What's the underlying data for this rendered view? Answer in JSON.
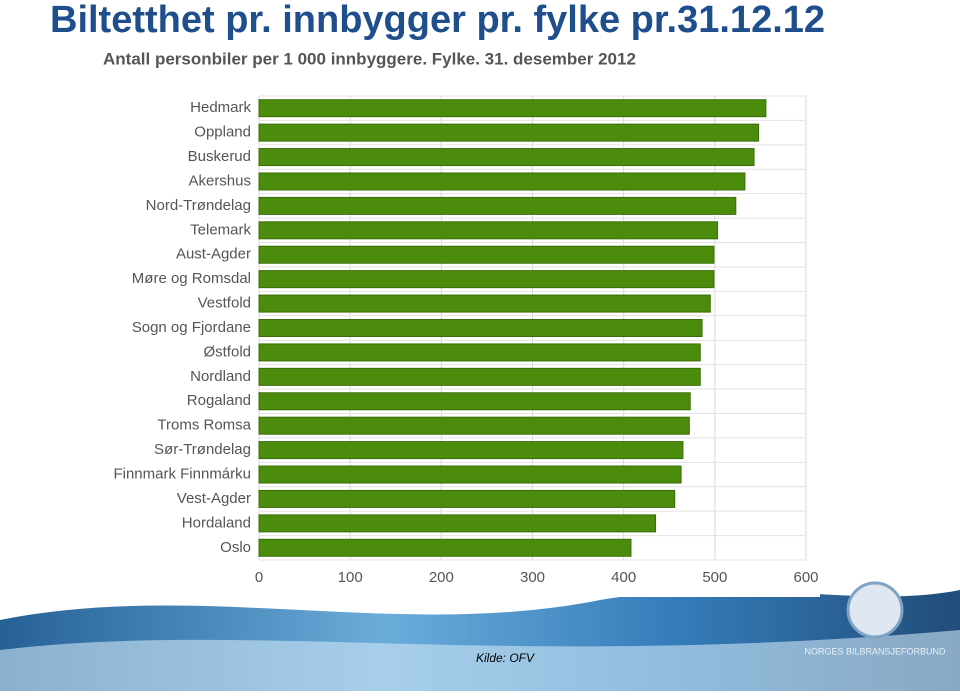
{
  "slide_title": "Biltetthet pr. innbygger pr. fylke pr.31.12.12",
  "source": "Kilde: OFV",
  "logo": "NORGES BILBRANSJEFORBUND",
  "chart_data": {
    "type": "hbar",
    "title": "Antall personbiler per 1 000 innbyggere. Fylke. 31. desember 2012",
    "categories": [
      "Hedmark",
      "Oppland",
      "Buskerud",
      "Akershus",
      "Nord-Trøndelag",
      "Telemark",
      "Aust-Agder",
      "Møre og Romsdal",
      "Vestfold",
      "Sogn og Fjordane",
      "Østfold",
      "Nordland",
      "Rogaland",
      "Troms Romsa",
      "Sør-Trøndelag",
      "Finnmark Finnmárku",
      "Vest-Agder",
      "Hordaland",
      "Oslo"
    ],
    "values": [
      556,
      548,
      543,
      533,
      523,
      503,
      499,
      499,
      495,
      486,
      484,
      484,
      473,
      472,
      465,
      463,
      456,
      435,
      408
    ],
    "color": "#4b8c0c",
    "xlim": [
      0,
      600
    ],
    "xticks": [
      0,
      100,
      200,
      300,
      400,
      500,
      600
    ],
    "grid": true
  }
}
